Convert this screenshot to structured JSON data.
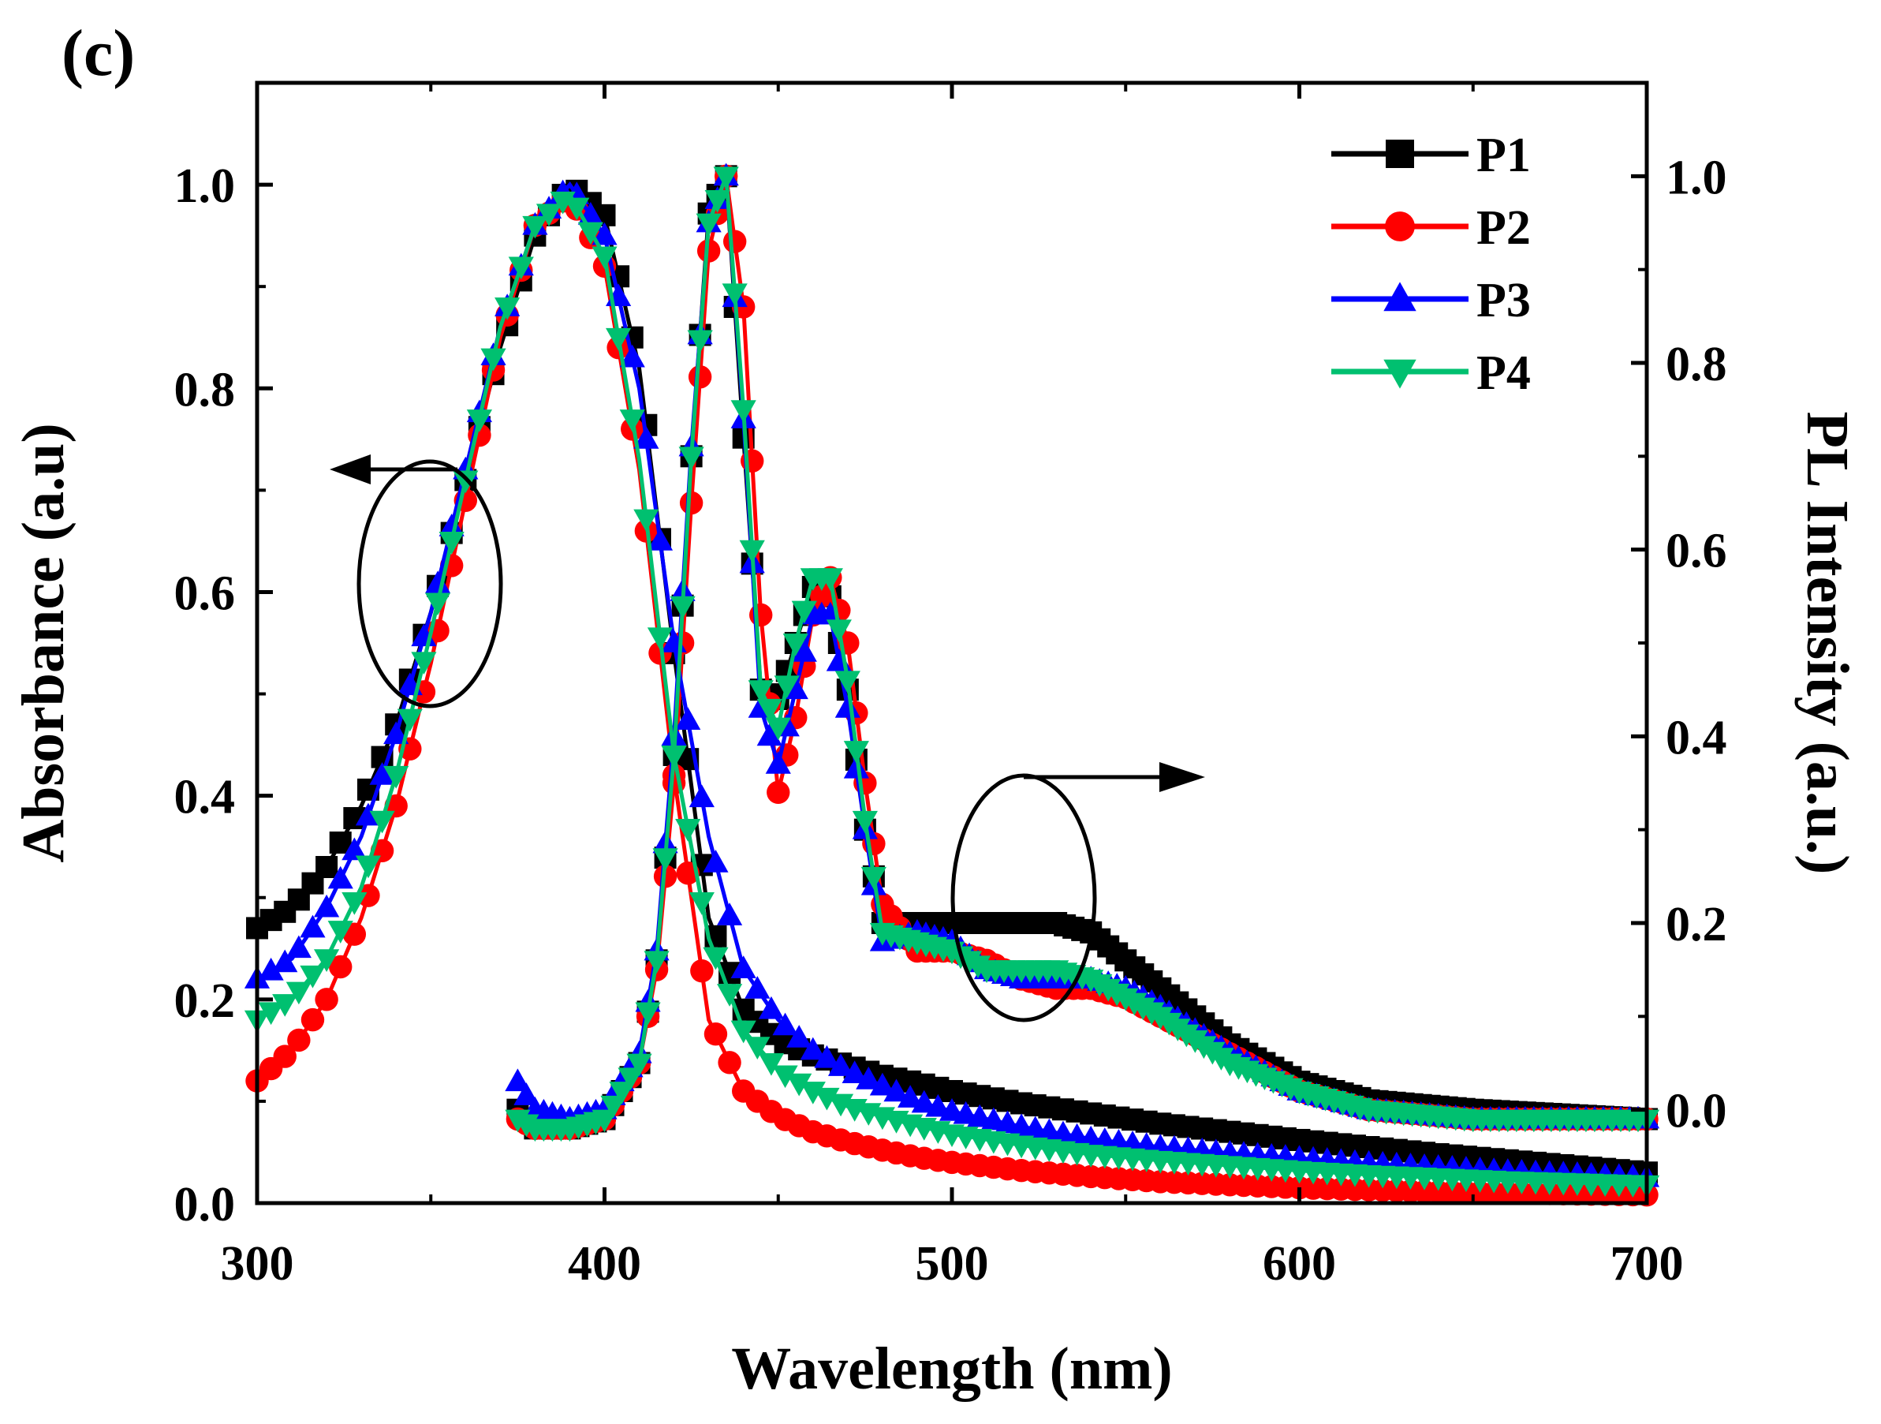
{
  "panel_label": "(c)",
  "chart_data": {
    "type": "line",
    "title": "",
    "xlabel": "Wavelength (nm)",
    "ylabel_left": "Absorbance (a.u)",
    "ylabel_right": "PL Intensity (a.u.)",
    "xlim": [
      300,
      700
    ],
    "ylim_left": [
      0,
      1.1
    ],
    "ylim_right": [
      -0.1,
      1.1
    ],
    "xticks": [
      300,
      400,
      500,
      600,
      700
    ],
    "yticks_left": [
      "0.0",
      "0.2",
      "0.4",
      "0.6",
      "0.8",
      "1.0"
    ],
    "yticks_right": [
      "0.0",
      "0.2",
      "0.4",
      "0.6",
      "0.8",
      "1.0"
    ],
    "legend_position": "top-right",
    "annotations": [
      {
        "type": "ellipse-arrow",
        "axis": "left",
        "direction": "left",
        "center": [
          350,
          0.6
        ],
        "meaning": "absorption curves -> left axis"
      },
      {
        "type": "ellipse-arrow",
        "axis": "right",
        "direction": "right",
        "center": [
          520,
          0.2
        ],
        "meaning": "PL curves -> right axis"
      }
    ],
    "series": [
      {
        "name": "P1",
        "color": "#000000",
        "marker": "square",
        "absorbance": {
          "x": [
            300,
            310,
            320,
            330,
            340,
            350,
            360,
            370,
            380,
            390,
            400,
            410,
            420,
            430,
            440,
            450,
            460,
            470,
            480,
            490,
            500,
            520,
            540,
            560,
            580,
            600,
            620,
            640,
            660,
            680,
            700
          ],
          "y": [
            0.27,
            0.29,
            0.33,
            0.39,
            0.47,
            0.58,
            0.71,
            0.84,
            0.95,
            1.0,
            0.97,
            0.82,
            0.54,
            0.28,
            0.19,
            0.16,
            0.145,
            0.135,
            0.125,
            0.118,
            0.11,
            0.098,
            0.088,
            0.078,
            0.07,
            0.062,
            0.055,
            0.048,
            0.042,
            0.036,
            0.03
          ]
        },
        "pl": {
          "x": [
            375,
            380,
            390,
            400,
            410,
            415,
            420,
            425,
            430,
            435,
            440,
            445,
            450,
            455,
            460,
            465,
            470,
            475,
            480,
            490,
            500,
            510,
            520,
            530,
            540,
            550,
            560,
            580,
            600,
            620,
            650,
            700
          ],
          "y": [
            0.0,
            -0.02,
            -0.02,
            -0.01,
            0.05,
            0.16,
            0.38,
            0.7,
            0.96,
            1.0,
            0.72,
            0.45,
            0.44,
            0.5,
            0.56,
            0.55,
            0.45,
            0.3,
            0.2,
            0.2,
            0.2,
            0.2,
            0.2,
            0.2,
            0.19,
            0.16,
            0.13,
            0.07,
            0.03,
            0.01,
            0.0,
            -0.01
          ]
        }
      },
      {
        "name": "P2",
        "color": "#ff0000",
        "marker": "circle",
        "absorbance": {
          "x": [
            300,
            310,
            320,
            330,
            340,
            350,
            360,
            370,
            380,
            390,
            400,
            410,
            420,
            430,
            440,
            450,
            460,
            470,
            480,
            490,
            500,
            520,
            540,
            560,
            580,
            600,
            620,
            640,
            660,
            680,
            700
          ],
          "y": [
            0.12,
            0.15,
            0.2,
            0.28,
            0.39,
            0.53,
            0.69,
            0.85,
            0.96,
            0.99,
            0.92,
            0.72,
            0.42,
            0.18,
            0.11,
            0.085,
            0.07,
            0.06,
            0.052,
            0.045,
            0.04,
            0.032,
            0.026,
            0.021,
            0.018,
            0.015,
            0.013,
            0.011,
            0.01,
            0.009,
            0.008
          ]
        },
        "pl": {
          "x": [
            375,
            380,
            390,
            400,
            410,
            415,
            420,
            425,
            430,
            435,
            440,
            445,
            450,
            455,
            460,
            465,
            470,
            475,
            480,
            490,
            500,
            510,
            520,
            530,
            540,
            550,
            560,
            580,
            600,
            620,
            650,
            700
          ],
          "y": [
            -0.01,
            -0.02,
            -0.02,
            -0.01,
            0.05,
            0.15,
            0.35,
            0.65,
            0.92,
            1.0,
            0.86,
            0.53,
            0.34,
            0.42,
            0.53,
            0.57,
            0.5,
            0.35,
            0.22,
            0.17,
            0.17,
            0.16,
            0.14,
            0.13,
            0.13,
            0.12,
            0.1,
            0.06,
            0.02,
            0.0,
            -0.01,
            -0.01
          ]
        }
      },
      {
        "name": "P3",
        "color": "#0000ff",
        "marker": "triangle-up",
        "absorbance": {
          "x": [
            300,
            310,
            320,
            330,
            340,
            350,
            360,
            370,
            380,
            390,
            400,
            410,
            420,
            430,
            440,
            450,
            460,
            470,
            480,
            490,
            500,
            520,
            540,
            560,
            580,
            600,
            620,
            640,
            660,
            680,
            700
          ],
          "y": [
            0.22,
            0.24,
            0.29,
            0.36,
            0.46,
            0.58,
            0.72,
            0.86,
            0.96,
            1.0,
            0.95,
            0.8,
            0.55,
            0.36,
            0.23,
            0.18,
            0.15,
            0.13,
            0.115,
            0.1,
            0.09,
            0.075,
            0.063,
            0.055,
            0.049,
            0.044,
            0.039,
            0.035,
            0.031,
            0.028,
            0.025
          ]
        },
        "pl": {
          "x": [
            375,
            380,
            390,
            400,
            410,
            415,
            420,
            425,
            430,
            435,
            440,
            445,
            450,
            455,
            460,
            465,
            470,
            475,
            480,
            490,
            500,
            510,
            520,
            530,
            540,
            550,
            560,
            580,
            600,
            620,
            650,
            700
          ],
          "y": [
            0.03,
            0.0,
            -0.01,
            0.0,
            0.06,
            0.17,
            0.4,
            0.71,
            0.95,
            1.0,
            0.74,
            0.43,
            0.37,
            0.45,
            0.53,
            0.53,
            0.43,
            0.3,
            0.18,
            0.19,
            0.18,
            0.15,
            0.14,
            0.14,
            0.14,
            0.13,
            0.11,
            0.06,
            0.02,
            0.0,
            -0.01,
            -0.01
          ]
        }
      },
      {
        "name": "P4",
        "color": "#00c070",
        "marker": "triangle-down",
        "absorbance": {
          "x": [
            300,
            310,
            320,
            330,
            340,
            350,
            360,
            370,
            380,
            390,
            400,
            410,
            420,
            430,
            440,
            450,
            460,
            470,
            480,
            490,
            500,
            520,
            540,
            560,
            580,
            600,
            620,
            640,
            660,
            680,
            700
          ],
          "y": [
            0.18,
            0.2,
            0.24,
            0.31,
            0.42,
            0.56,
            0.71,
            0.86,
            0.96,
            0.99,
            0.93,
            0.73,
            0.44,
            0.26,
            0.17,
            0.13,
            0.11,
            0.095,
            0.085,
            0.076,
            0.068,
            0.057,
            0.048,
            0.042,
            0.037,
            0.032,
            0.028,
            0.025,
            0.022,
            0.02,
            0.018
          ]
        },
        "pl": {
          "x": [
            375,
            380,
            390,
            400,
            410,
            415,
            420,
            425,
            430,
            435,
            440,
            445,
            450,
            455,
            460,
            465,
            470,
            475,
            480,
            490,
            500,
            510,
            520,
            530,
            540,
            550,
            560,
            580,
            600,
            620,
            650,
            700
          ],
          "y": [
            -0.01,
            -0.02,
            -0.02,
            -0.01,
            0.05,
            0.16,
            0.38,
            0.7,
            0.95,
            1.0,
            0.75,
            0.45,
            0.41,
            0.5,
            0.57,
            0.57,
            0.46,
            0.31,
            0.19,
            0.18,
            0.17,
            0.15,
            0.15,
            0.15,
            0.14,
            0.12,
            0.1,
            0.05,
            0.02,
            0.0,
            -0.01,
            -0.01
          ]
        }
      }
    ]
  }
}
